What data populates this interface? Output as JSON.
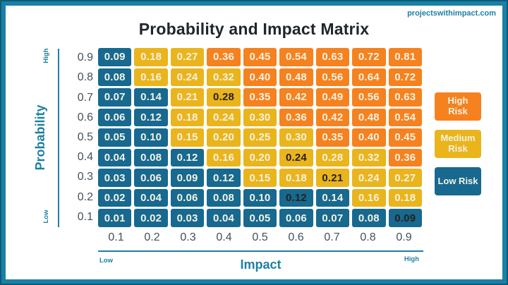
{
  "page": {
    "title": "Probability and Impact Matrix",
    "watermark": "projectswithimpact.com"
  },
  "colors": {
    "frame": "#1A81A6",
    "frame_edge": "#0D5B77",
    "risk": {
      "high": "#F5821F",
      "medium": "#EAB41C",
      "low": "#17698F"
    },
    "axis_label": "#1F7FA3",
    "tick_label": "#42505B",
    "title_text": "#20262E",
    "cell_text": "#F6F2E4",
    "cell_text_dark": "#27221A"
  },
  "chart_data": {
    "type": "heatmap",
    "title": "Probability and Impact Matrix",
    "xlabel": "Impact",
    "ylabel": "Probability",
    "x_ticks": [
      "0.1",
      "0.2",
      "0.3",
      "0.4",
      "0.5",
      "0.6",
      "0.7",
      "0.8",
      "0.9"
    ],
    "y_ticks": [
      "0.9",
      "0.8",
      "0.7",
      "0.6",
      "0.5",
      "0.4",
      "0.3",
      "0.2",
      "0.1"
    ],
    "axis_endpoints": {
      "x_low": "Low",
      "x_high": "High",
      "y_low": "Low",
      "y_high": "High"
    },
    "legend": [
      {
        "label": "High Risk",
        "risk": "high"
      },
      {
        "label": "Medium Risk",
        "risk": "medium"
      },
      {
        "label": "Low Risk",
        "risk": "low"
      }
    ],
    "rows": [
      {
        "probability": "0.9",
        "cells": [
          {
            "v": "0.09",
            "risk": "low"
          },
          {
            "v": "0.18",
            "risk": "medium"
          },
          {
            "v": "0.27",
            "risk": "medium"
          },
          {
            "v": "0.36",
            "risk": "high"
          },
          {
            "v": "0.45",
            "risk": "high"
          },
          {
            "v": "0.54",
            "risk": "high"
          },
          {
            "v": "0.63",
            "risk": "high"
          },
          {
            "v": "0.72",
            "risk": "high"
          },
          {
            "v": "0.81",
            "risk": "high"
          }
        ]
      },
      {
        "probability": "0.8",
        "cells": [
          {
            "v": "0.08",
            "risk": "low"
          },
          {
            "v": "0.16",
            "risk": "medium"
          },
          {
            "v": "0.24",
            "risk": "medium"
          },
          {
            "v": "0.32",
            "risk": "medium"
          },
          {
            "v": "0.40",
            "risk": "high"
          },
          {
            "v": "0.48",
            "risk": "high"
          },
          {
            "v": "0.56",
            "risk": "high"
          },
          {
            "v": "0.64",
            "risk": "high"
          },
          {
            "v": "0.72",
            "risk": "high"
          }
        ]
      },
      {
        "probability": "0.7",
        "cells": [
          {
            "v": "0.07",
            "risk": "low"
          },
          {
            "v": "0.14",
            "risk": "low"
          },
          {
            "v": "0.21",
            "risk": "medium"
          },
          {
            "v": "0.28",
            "risk": "medium",
            "dark_text": true
          },
          {
            "v": "0.35",
            "risk": "high"
          },
          {
            "v": "0.42",
            "risk": "high"
          },
          {
            "v": "0.49",
            "risk": "high"
          },
          {
            "v": "0.56",
            "risk": "high"
          },
          {
            "v": "0.63",
            "risk": "high"
          }
        ]
      },
      {
        "probability": "0.6",
        "cells": [
          {
            "v": "0.06",
            "risk": "low"
          },
          {
            "v": "0.12",
            "risk": "low"
          },
          {
            "v": "0.18",
            "risk": "medium"
          },
          {
            "v": "0.24",
            "risk": "medium"
          },
          {
            "v": "0.30",
            "risk": "medium"
          },
          {
            "v": "0.36",
            "risk": "high"
          },
          {
            "v": "0.42",
            "risk": "high"
          },
          {
            "v": "0.48",
            "risk": "high"
          },
          {
            "v": "0.54",
            "risk": "high"
          }
        ]
      },
      {
        "probability": "0.5",
        "cells": [
          {
            "v": "0.05",
            "risk": "low"
          },
          {
            "v": "0.10",
            "risk": "low"
          },
          {
            "v": "0.15",
            "risk": "medium"
          },
          {
            "v": "0.20",
            "risk": "medium"
          },
          {
            "v": "0.25",
            "risk": "medium"
          },
          {
            "v": "0.30",
            "risk": "medium"
          },
          {
            "v": "0.35",
            "risk": "high"
          },
          {
            "v": "0.40",
            "risk": "high"
          },
          {
            "v": "0.45",
            "risk": "high"
          }
        ]
      },
      {
        "probability": "0.4",
        "cells": [
          {
            "v": "0.04",
            "risk": "low"
          },
          {
            "v": "0.08",
            "risk": "low"
          },
          {
            "v": "0.12",
            "risk": "low"
          },
          {
            "v": "0.16",
            "risk": "medium"
          },
          {
            "v": "0.20",
            "risk": "medium"
          },
          {
            "v": "0.24",
            "risk": "medium",
            "dark_text": true
          },
          {
            "v": "0.28",
            "risk": "medium"
          },
          {
            "v": "0.32",
            "risk": "medium"
          },
          {
            "v": "0.36",
            "risk": "high"
          }
        ]
      },
      {
        "probability": "0.3",
        "cells": [
          {
            "v": "0.03",
            "risk": "low"
          },
          {
            "v": "0.06",
            "risk": "low"
          },
          {
            "v": "0.09",
            "risk": "low"
          },
          {
            "v": "0.12",
            "risk": "low"
          },
          {
            "v": "0.15",
            "risk": "medium"
          },
          {
            "v": "0.18",
            "risk": "medium"
          },
          {
            "v": "0.21",
            "risk": "medium",
            "dark_text": true
          },
          {
            "v": "0.24",
            "risk": "medium"
          },
          {
            "v": "0.27",
            "risk": "medium"
          }
        ]
      },
      {
        "probability": "0.2",
        "cells": [
          {
            "v": "0.02",
            "risk": "low"
          },
          {
            "v": "0.04",
            "risk": "low"
          },
          {
            "v": "0.06",
            "risk": "low"
          },
          {
            "v": "0.08",
            "risk": "low"
          },
          {
            "v": "0.10",
            "risk": "low"
          },
          {
            "v": "0.12",
            "risk": "low",
            "dark_text": true
          },
          {
            "v": "0.14",
            "risk": "low"
          },
          {
            "v": "0.16",
            "risk": "medium"
          },
          {
            "v": "0.18",
            "risk": "medium"
          }
        ]
      },
      {
        "probability": "0.1",
        "cells": [
          {
            "v": "0.01",
            "risk": "low"
          },
          {
            "v": "0.02",
            "risk": "low"
          },
          {
            "v": "0.03",
            "risk": "low"
          },
          {
            "v": "0.04",
            "risk": "low"
          },
          {
            "v": "0.05",
            "risk": "low"
          },
          {
            "v": "0.06",
            "risk": "low"
          },
          {
            "v": "0.07",
            "risk": "low"
          },
          {
            "v": "0.08",
            "risk": "low"
          },
          {
            "v": "0.09",
            "risk": "low",
            "dark_text": true
          }
        ]
      }
    ]
  }
}
